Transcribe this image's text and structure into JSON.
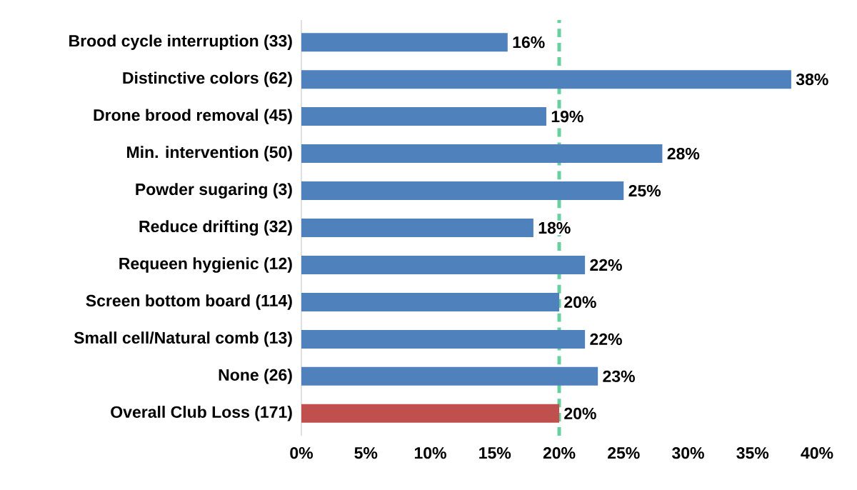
{
  "chart_data": {
    "type": "bar",
    "orientation": "horizontal",
    "categories": [
      "Brood cycle interruption (33)",
      "Distinctive colors (62)",
      "Drone brood removal (45)",
      "Min. intervention (50)",
      "Powder sugaring (3)",
      "Reduce drifting (32)",
      "Requeen hygienic (12)",
      "Screen bottom board (114)",
      "Small cell/Natural comb (13)",
      "None (26)",
      "Overall Club Loss (171)"
    ],
    "values": [
      16,
      38,
      19,
      28,
      25,
      18,
      22,
      20,
      22,
      23,
      20
    ],
    "colors": [
      "#4f81bd",
      "#4f81bd",
      "#4f81bd",
      "#4f81bd",
      "#4f81bd",
      "#4f81bd",
      "#4f81bd",
      "#4f81bd",
      "#4f81bd",
      "#4f81bd",
      "#c0504d"
    ],
    "value_labels": [
      "16%",
      "38%",
      "19%",
      "28%",
      "25%",
      "18%",
      "22%",
      "20%",
      "22%",
      "23%",
      "20%"
    ],
    "xlim": [
      0,
      40
    ],
    "xticks": [
      {
        "value": 0,
        "label": "0%"
      },
      {
        "value": 5,
        "label": "5%"
      },
      {
        "value": 10,
        "label": "10%"
      },
      {
        "value": 15,
        "label": "15%"
      },
      {
        "value": 20,
        "label": "20%"
      },
      {
        "value": 25,
        "label": "25%"
      },
      {
        "value": 30,
        "label": "30%"
      },
      {
        "value": 35,
        "label": "35%"
      },
      {
        "value": 40,
        "label": "40%"
      }
    ],
    "ref_lines": [
      {
        "axis": "x",
        "value": 20,
        "color": "#66d19e",
        "line_style": "dashed"
      }
    ],
    "grid": false
  }
}
